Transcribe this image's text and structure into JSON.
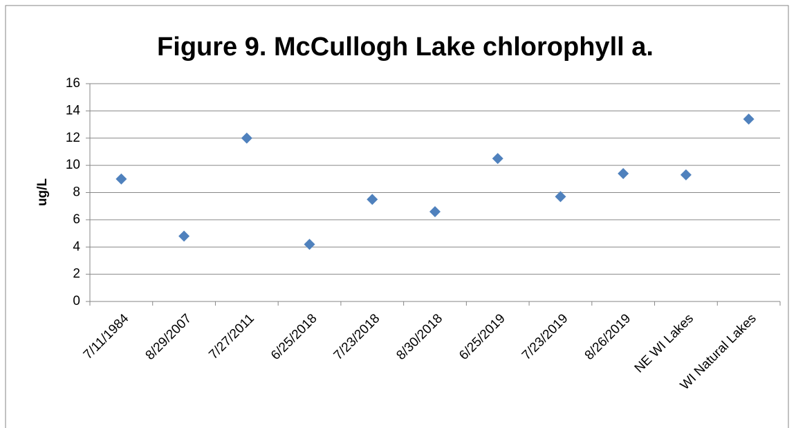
{
  "chart_data": {
    "type": "scatter",
    "title": "Figure 9. McCullogh Lake chlorophyll a.",
    "y_label": "ug/L",
    "categories": [
      "7/11/1984",
      "8/29/2007",
      "7/27/2011",
      "6/25/2018",
      "7/23/2018",
      "8/30/2018",
      "6/25/2019",
      "7/23/2019",
      "8/26/2019",
      "NE WI Lakes",
      "WI Natural Lakes"
    ],
    "values": [
      9.0,
      4.8,
      12.0,
      4.2,
      7.5,
      6.6,
      10.5,
      7.7,
      9.4,
      9.3,
      13.4
    ],
    "color": "#4f81bd",
    "ylim": [
      0,
      16
    ],
    "yticks": [
      0,
      2,
      4,
      6,
      8,
      10,
      12,
      14,
      16
    ],
    "grid": true
  }
}
